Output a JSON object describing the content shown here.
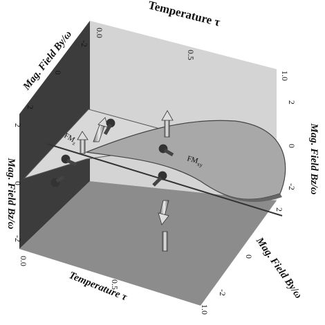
{
  "axes": {
    "top_temperature": {
      "label": "Temperature τ",
      "ticks": [
        "0.0",
        "0.5",
        "1.0"
      ]
    },
    "top_field_by": {
      "label": "Mag. Field By/ω",
      "ticks": [
        "2",
        "0",
        "-2"
      ]
    },
    "right_field_bz": {
      "label": "Mag. Field Bz/ω",
      "ticks": [
        "2",
        "0",
        "-2"
      ]
    },
    "left_field_bz": {
      "label": "Mag. Field Bz/ω",
      "ticks": [
        "2",
        "0",
        "-2"
      ]
    },
    "bottom_temperature": {
      "label": "Temperature τ",
      "ticks": [
        "0.0",
        "0.5",
        "1.0"
      ]
    },
    "bottom_field_by": {
      "label": "Mag. Field By/ω",
      "ticks": [
        "2",
        "0",
        "-2"
      ]
    }
  },
  "regions": [
    {
      "main": "FM",
      "sub": "z"
    },
    {
      "main": "FM",
      "sub": "xy"
    }
  ]
}
